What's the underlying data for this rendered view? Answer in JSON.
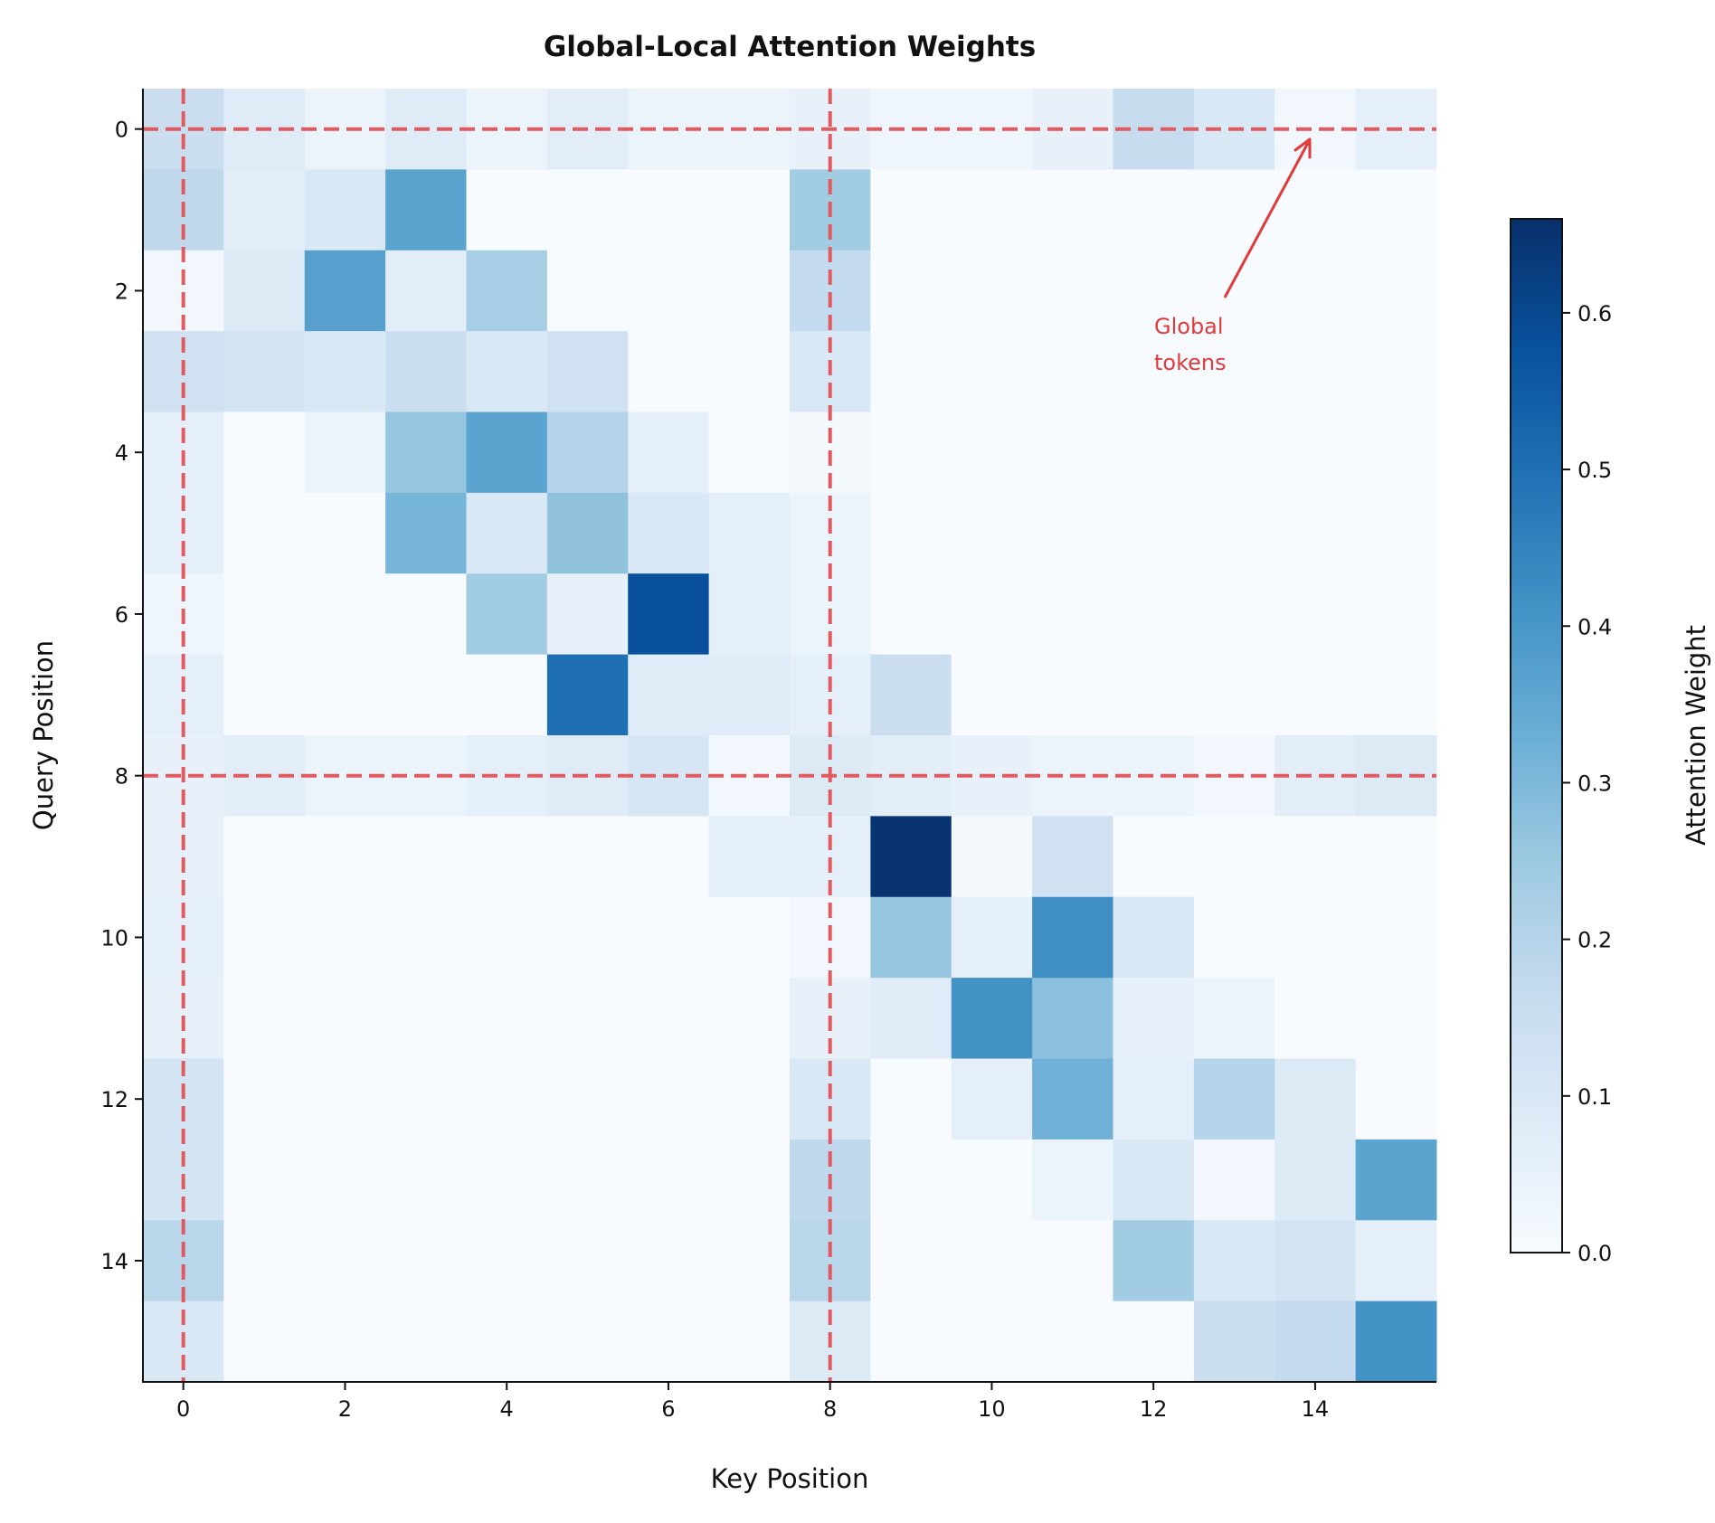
{
  "chart_data": {
    "type": "heatmap",
    "title": "Global-Local Attention Weights",
    "xlabel": "Key Position",
    "ylabel": "Query Position",
    "colorbar_label": "Attention Weight",
    "colormap": "Blues",
    "vmin": 0.0,
    "vmax": 0.66,
    "x_ticks": [
      "0",
      "2",
      "4",
      "6",
      "8",
      "10",
      "12",
      "14"
    ],
    "y_ticks": [
      "0",
      "2",
      "4",
      "6",
      "8",
      "10",
      "12",
      "14"
    ],
    "colorbar_ticks": [
      "0.0",
      "0.1",
      "0.2",
      "0.3",
      "0.4",
      "0.5",
      "0.6"
    ],
    "grid": false,
    "global_token_lines": {
      "positions": [
        0,
        8
      ],
      "color": "#e05a5f",
      "style": "dashed"
    },
    "annotation": {
      "lines": [
        "Global",
        "tokens"
      ],
      "points_to": [
        14,
        0
      ],
      "color": "#e03a3a"
    },
    "values": [
      [
        0.15,
        0.08,
        0.04,
        0.08,
        0.04,
        0.07,
        0.04,
        0.04,
        0.05,
        0.03,
        0.03,
        0.05,
        0.16,
        0.1,
        0.02,
        0.06
      ],
      [
        0.18,
        0.07,
        0.1,
        0.36,
        0,
        0,
        0,
        0,
        0.24,
        0,
        0,
        0,
        0,
        0,
        0,
        0
      ],
      [
        0.02,
        0.09,
        0.37,
        0.07,
        0.23,
        0,
        0,
        0,
        0.17,
        0,
        0,
        0,
        0,
        0,
        0,
        0
      ],
      [
        0.13,
        0.12,
        0.1,
        0.15,
        0.1,
        0.13,
        0,
        0,
        0.1,
        0,
        0,
        0,
        0,
        0,
        0,
        0
      ],
      [
        0.06,
        0,
        0.04,
        0.26,
        0.36,
        0.2,
        0.06,
        0,
        0.01,
        0,
        0,
        0,
        0,
        0,
        0,
        0
      ],
      [
        0.06,
        0,
        0,
        0.31,
        0.1,
        0.27,
        0.1,
        0.06,
        0.04,
        0,
        0,
        0,
        0,
        0,
        0,
        0
      ],
      [
        0.03,
        0,
        0,
        0,
        0.24,
        0.05,
        0.58,
        0.06,
        0.04,
        0,
        0,
        0,
        0,
        0,
        0,
        0
      ],
      [
        0.06,
        0,
        0,
        0,
        0,
        0.5,
        0.08,
        0.08,
        0.06,
        0.15,
        0,
        0,
        0,
        0,
        0,
        0
      ],
      [
        0.05,
        0.07,
        0.04,
        0.04,
        0.06,
        0.08,
        0.11,
        0.02,
        0.09,
        0.07,
        0.05,
        0.04,
        0.04,
        0.02,
        0.07,
        0.09
      ],
      [
        0.05,
        0,
        0,
        0,
        0,
        0,
        0,
        0.06,
        0.06,
        0.65,
        0.01,
        0.13,
        0,
        0,
        0,
        0
      ],
      [
        0.06,
        0,
        0,
        0,
        0,
        0,
        0,
        0,
        0.02,
        0.26,
        0.06,
        0.42,
        0.1,
        0,
        0,
        0
      ],
      [
        0.05,
        0,
        0,
        0,
        0,
        0,
        0,
        0,
        0.05,
        0.08,
        0.41,
        0.28,
        0.05,
        0.04,
        0,
        0
      ],
      [
        0.12,
        0,
        0,
        0,
        0,
        0,
        0,
        0,
        0.1,
        0,
        0.06,
        0.32,
        0.06,
        0.2,
        0.09,
        0
      ],
      [
        0.12,
        0,
        0,
        0,
        0,
        0,
        0,
        0,
        0.18,
        0,
        0,
        0.04,
        0.1,
        0.02,
        0.09,
        0.36
      ],
      [
        0.19,
        0,
        0,
        0,
        0,
        0,
        0,
        0,
        0.19,
        0,
        0,
        0,
        0.24,
        0.1,
        0.12,
        0.06
      ],
      [
        0.1,
        0,
        0,
        0,
        0,
        0,
        0,
        0,
        0.09,
        0,
        0,
        0,
        0,
        0.15,
        0.17,
        0.41
      ]
    ]
  }
}
